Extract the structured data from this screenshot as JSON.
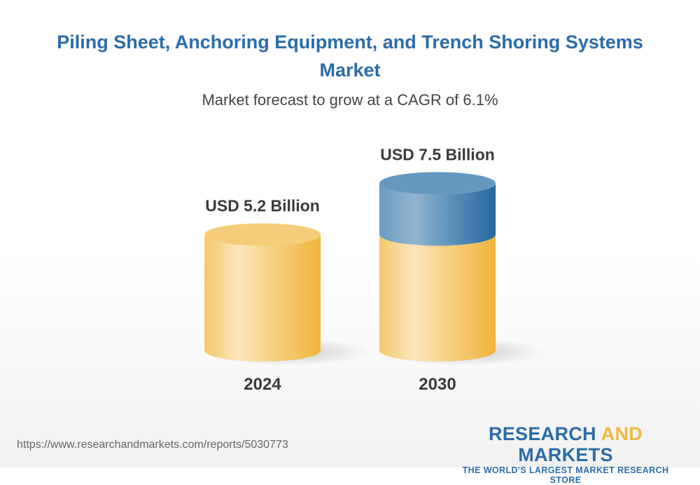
{
  "title": "Piling Sheet, Anchoring Equipment, and Trench Shoring Systems Market",
  "subtitle": "Market forecast to grow at a CAGR of 6.1%",
  "chart_data": {
    "type": "bar",
    "style": "3d-cylinder",
    "categories": [
      "2024",
      "2030"
    ],
    "values": [
      5.2,
      7.5
    ],
    "value_labels": [
      "USD 5.2 Billion",
      "USD 7.5 Billion"
    ],
    "unit": "USD Billion",
    "colors": {
      "base": "#f2c25a",
      "growth": "#3b78aa"
    }
  },
  "footer": {
    "url": "https://www.researchandmarkets.com/reports/5030773",
    "logo": {
      "part1": "RESEARCH ",
      "part2": "AND",
      "part3": " MARKETS",
      "tagline": "THE WORLD'S LARGEST MARKET RESEARCH STORE"
    }
  }
}
